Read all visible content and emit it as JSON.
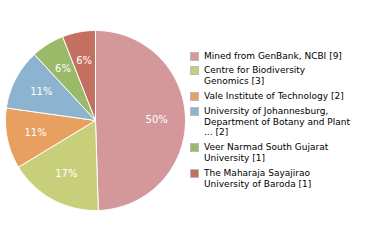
{
  "chart_data": {
    "type": "pie",
    "categories": [
      "Mined from GenBank, NCBI [9]",
      "Centre for Biodiversity\nGenomics [3]",
      "Vale Institute of Technology [2]",
      "University of Johannesburg,\nDepartment of Botany and Plant\n... [2]",
      "Veer Narmad South Gujarat\nUniversity [1]",
      "The Maharaja Sayajirao\nUniversity of Baroda [1]"
    ],
    "values": [
      50,
      17,
      11,
      11,
      6,
      6
    ],
    "value_labels": [
      "50%",
      "17%",
      "11%",
      "11%",
      "6%",
      "6%"
    ],
    "colors": [
      "#d4979a",
      "#c8cf7a",
      "#e8a060",
      "#8cb4d0",
      "#9aba6a",
      "#c47060"
    ],
    "data_labels": true,
    "legend": "right"
  }
}
